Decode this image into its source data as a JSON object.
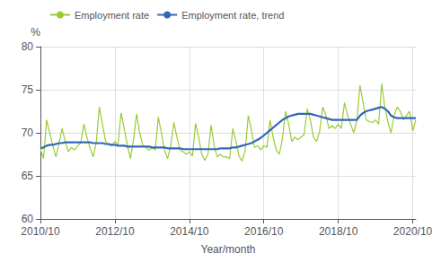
{
  "chart_data": {
    "type": "line",
    "xlabel": "Year/month",
    "ylabel": "%",
    "categories": [
      "2010/10",
      null,
      null,
      null,
      null,
      null,
      null,
      null,
      null,
      null,
      null,
      null,
      null,
      null,
      null,
      null,
      null,
      null,
      null,
      null,
      null,
      null,
      null,
      null,
      "2012/10",
      null,
      null,
      null,
      null,
      null,
      null,
      null,
      null,
      null,
      null,
      null,
      null,
      null,
      null,
      null,
      null,
      null,
      null,
      null,
      null,
      null,
      null,
      null,
      "2014/10",
      null,
      null,
      null,
      null,
      null,
      null,
      null,
      null,
      null,
      null,
      null,
      null,
      null,
      null,
      null,
      null,
      null,
      null,
      null,
      null,
      null,
      null,
      null,
      "2016/10",
      null,
      null,
      null,
      null,
      null,
      null,
      null,
      null,
      null,
      null,
      null,
      null,
      null,
      null,
      null,
      null,
      null,
      null,
      null,
      null,
      null,
      null,
      null,
      "2018/10",
      null,
      null,
      null,
      null,
      null,
      null,
      null,
      null,
      null,
      null,
      null,
      null,
      null,
      null,
      null,
      null,
      null,
      null,
      null,
      null,
      null,
      null,
      null,
      "2020/10",
      null
    ],
    "series": [
      {
        "name": "Employment rate",
        "color": "#99CC33",
        "values": [
          68.1,
          67.0,
          71.5,
          70.0,
          68.5,
          67.2,
          68.8,
          70.5,
          69.0,
          67.8,
          68.3,
          68.0,
          68.5,
          68.8,
          71.0,
          69.5,
          68.2,
          67.2,
          68.9,
          73.0,
          71.0,
          69.0,
          68.6,
          68.5,
          69.0,
          68.6,
          72.3,
          70.5,
          68.6,
          67.0,
          69.2,
          72.2,
          70.0,
          68.5,
          68.3,
          68.0,
          68.3,
          68.0,
          71.8,
          70.0,
          68.0,
          67.0,
          68.5,
          71.2,
          69.5,
          68.0,
          67.8,
          67.5,
          67.8,
          67.3,
          71.1,
          69.5,
          67.5,
          66.8,
          67.5,
          70.9,
          68.5,
          67.2,
          67.5,
          67.2,
          67.2,
          67.0,
          70.5,
          69.0,
          67.3,
          66.7,
          68.0,
          72.0,
          70.3,
          68.3,
          68.5,
          68.0,
          68.5,
          68.3,
          71.5,
          69.5,
          68.0,
          67.5,
          69.3,
          72.5,
          71.0,
          69.0,
          69.5,
          69.2,
          69.5,
          69.8,
          72.8,
          71.5,
          69.5,
          69.0,
          70.2,
          73.0,
          72.0,
          70.5,
          70.8,
          70.5,
          71.0,
          70.5,
          73.5,
          72.0,
          71.0,
          70.0,
          71.5,
          75.5,
          73.5,
          71.5,
          71.3,
          71.2,
          71.5,
          71.0,
          75.7,
          73.0,
          71.2,
          70.0,
          72.0,
          73.0,
          72.5,
          71.5,
          72.0,
          72.5,
          70.2,
          71.5
        ]
      },
      {
        "name": "Employment rate, trend",
        "color": "#3366BB",
        "values": [
          68.2,
          68.3,
          68.5,
          68.6,
          68.6,
          68.7,
          68.8,
          68.8,
          68.9,
          68.9,
          68.9,
          68.9,
          68.9,
          68.9,
          68.9,
          68.9,
          68.9,
          68.8,
          68.8,
          68.8,
          68.8,
          68.7,
          68.7,
          68.6,
          68.6,
          68.5,
          68.5,
          68.5,
          68.4,
          68.4,
          68.4,
          68.4,
          68.4,
          68.4,
          68.4,
          68.4,
          68.3,
          68.3,
          68.3,
          68.3,
          68.3,
          68.2,
          68.2,
          68.2,
          68.2,
          68.2,
          68.1,
          68.1,
          68.1,
          68.1,
          68.1,
          68.1,
          68.1,
          68.1,
          68.1,
          68.1,
          68.1,
          68.1,
          68.2,
          68.2,
          68.2,
          68.2,
          68.3,
          68.3,
          68.4,
          68.5,
          68.6,
          68.7,
          68.8,
          69.0,
          69.2,
          69.4,
          69.7,
          70.0,
          70.3,
          70.6,
          70.9,
          71.2,
          71.5,
          71.7,
          71.9,
          72.0,
          72.1,
          72.2,
          72.2,
          72.2,
          72.2,
          72.2,
          72.1,
          72.0,
          71.9,
          71.8,
          71.7,
          71.6,
          71.5,
          71.5,
          71.5,
          71.5,
          71.5,
          71.5,
          71.5,
          71.5,
          71.5,
          72.0,
          72.3,
          72.5,
          72.6,
          72.7,
          72.8,
          72.9,
          73.0,
          72.8,
          72.5,
          72.0,
          71.8,
          71.7,
          71.7,
          71.7,
          71.7,
          71.7,
          71.7,
          71.7
        ]
      }
    ],
    "ylim": [
      60,
      80
    ],
    "yticks": [
      60,
      65,
      70,
      75,
      80
    ],
    "grid": true,
    "legend": "upper left"
  }
}
